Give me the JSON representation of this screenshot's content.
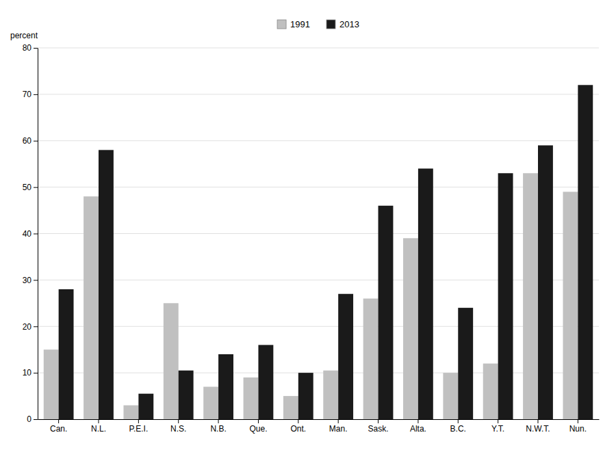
{
  "chart_data": {
    "type": "bar",
    "categories": [
      "Can.",
      "N.L.",
      "P.E.I.",
      "N.S.",
      "N.B.",
      "Que.",
      "Ont.",
      "Man.",
      "Sask.",
      "Alta.",
      "B.C.",
      "Y.T.",
      "N.W.T.",
      "Nun."
    ],
    "series": [
      {
        "name": "1991",
        "color": "#c0c0c0",
        "values": [
          15,
          48,
          3,
          25,
          7,
          9,
          5,
          10.5,
          26,
          39,
          10,
          12,
          53,
          49
        ]
      },
      {
        "name": "2013",
        "color": "#1a1a1a",
        "values": [
          28,
          58,
          5.5,
          10.5,
          14,
          16,
          10,
          27,
          46,
          54,
          24,
          53,
          59,
          72
        ]
      }
    ],
    "ylabel": "percent",
    "ylim": [
      0,
      80
    ],
    "yticks": [
      0,
      10,
      20,
      30,
      40,
      50,
      60,
      70,
      80
    ],
    "grid": true,
    "legend": "top"
  }
}
